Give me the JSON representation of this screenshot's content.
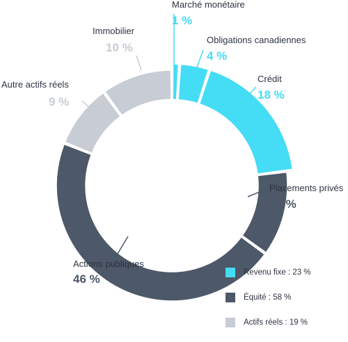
{
  "chart_data": {
    "type": "donut",
    "unit": "%",
    "slices": [
      {
        "name": "Marché monétaire",
        "value": 1,
        "pct_label": "1 %",
        "group": "revenu_fixe"
      },
      {
        "name": "Obligations canadiennes",
        "value": 4,
        "pct_label": "4 %",
        "group": "revenu_fixe"
      },
      {
        "name": "Crédit",
        "value": 18,
        "pct_label": "18 %",
        "group": "revenu_fixe"
      },
      {
        "name": "Placements privés",
        "value": 12,
        "pct_label": "12 %",
        "group": "equite"
      },
      {
        "name": "Actions publiques",
        "value": 46,
        "pct_label": "46 %",
        "group": "equite"
      },
      {
        "name": "Autre actifs réels",
        "value": 9,
        "pct_label": "9 %",
        "group": "actifs_reels"
      },
      {
        "name": "Immobilier",
        "value": 10,
        "pct_label": "10 %",
        "group": "actifs_reels"
      }
    ],
    "legend": [
      {
        "key": "revenu_fixe",
        "label": "Revenu fixe : 23 %",
        "color": "#45dcf6"
      },
      {
        "key": "equite",
        "label": "Équité : 58 %",
        "color": "#4d5868"
      },
      {
        "key": "actifs_reels",
        "label": "Actifs réels : 19 %",
        "color": "#c8ccd4"
      }
    ],
    "legend_position": "bottom-right"
  }
}
